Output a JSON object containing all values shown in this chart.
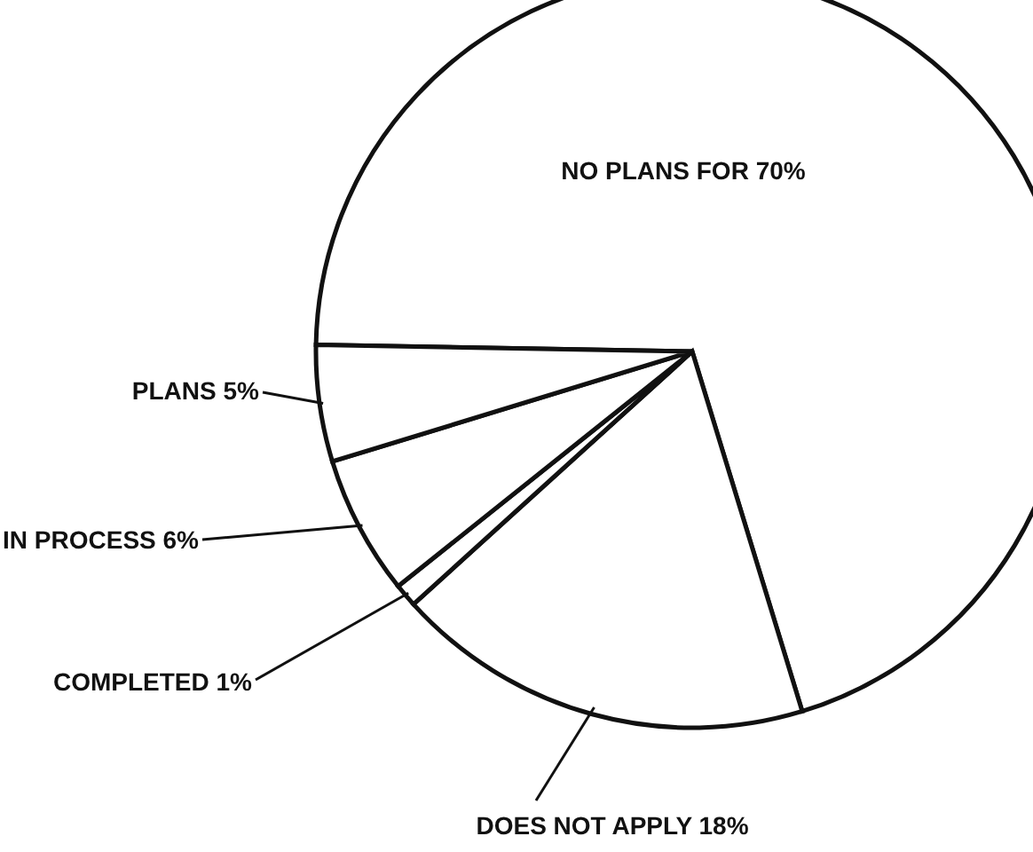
{
  "chart_data": {
    "type": "pie",
    "categories": [
      "NO PLANS FOR",
      "DOES NOT APPLY",
      "COMPLETED",
      "IN PROCESS",
      "PLANS"
    ],
    "values": [
      70,
      18,
      1,
      6,
      5
    ],
    "value_labels": [
      "70%",
      "18%",
      "1%",
      "6%",
      "5%"
    ],
    "colors": [
      "#ffffff",
      "#ffffff",
      "#ffffff",
      "#ffffff",
      "#ffffff"
    ]
  }
}
